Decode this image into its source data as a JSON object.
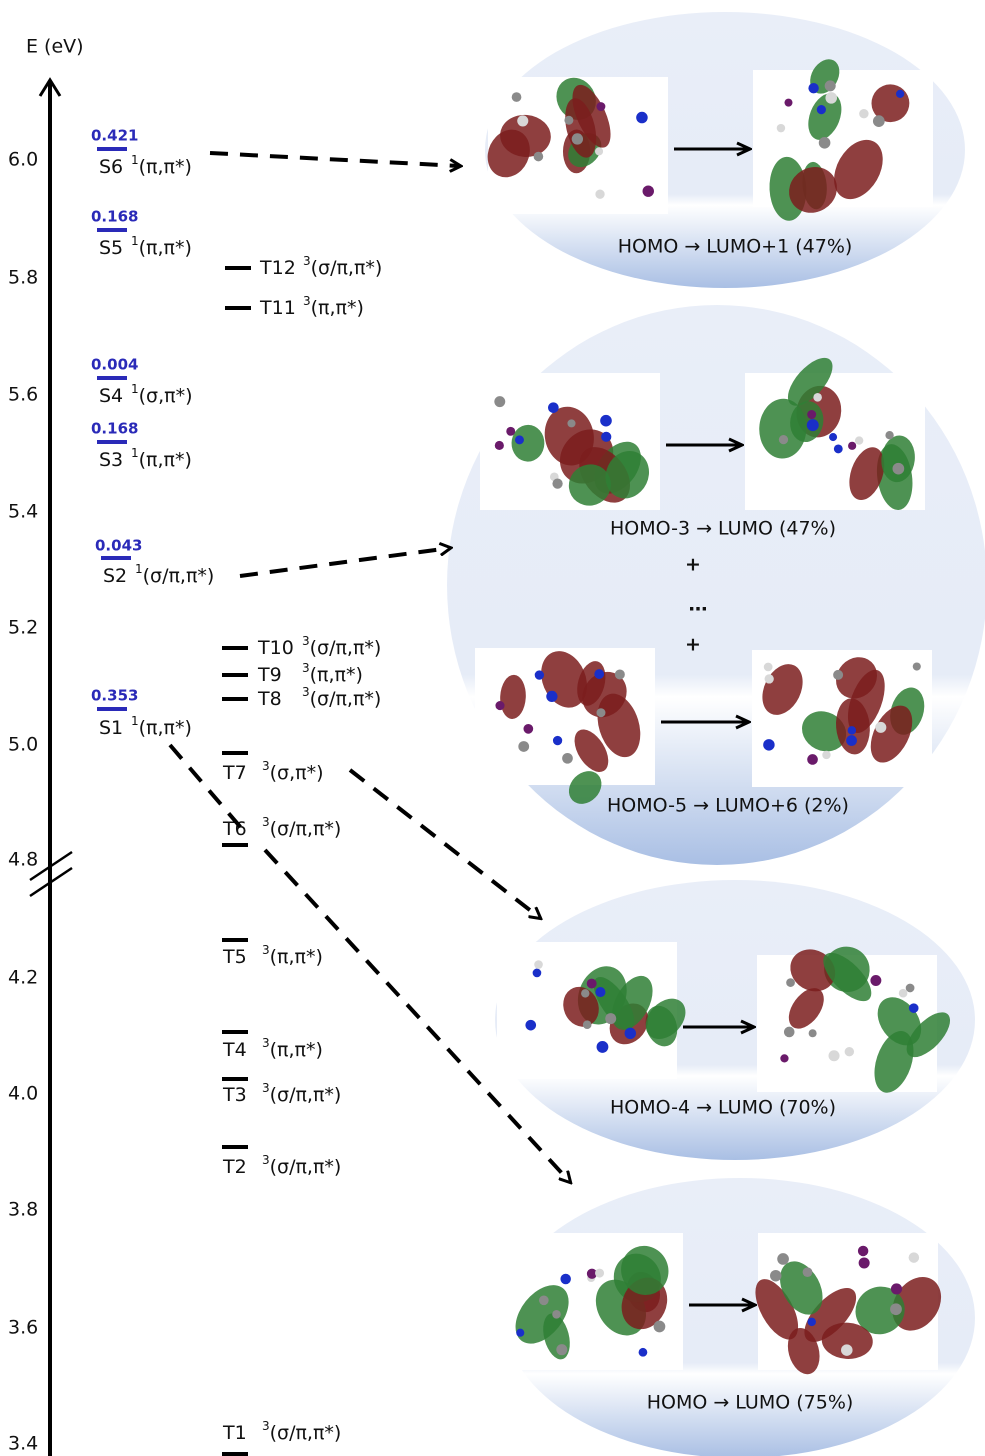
{
  "axis": {
    "label": "E (eV)",
    "ticks": [
      "6.0",
      "5.8",
      "5.6",
      "5.4",
      "5.2",
      "5.0",
      "4.8",
      "4.2",
      "4.0",
      "3.8",
      "3.6",
      "3.4"
    ]
  },
  "singlets": [
    {
      "f": "0.421",
      "name": "S6",
      "multiplicity": "1",
      "character": "(π,π*)"
    },
    {
      "f": "0.168",
      "name": "S5",
      "multiplicity": "1",
      "character": "(π,π*)"
    },
    {
      "f": "0.004",
      "name": "S4",
      "multiplicity": "1",
      "character": "(σ,π*)"
    },
    {
      "f": "0.168",
      "name": "S3",
      "multiplicity": "1",
      "character": "(π,π*)"
    },
    {
      "f": "0.043",
      "name": "S2",
      "multiplicity": "1",
      "character": "(σ/π,π*)"
    },
    {
      "f": "0.353",
      "name": "S1",
      "multiplicity": "1",
      "character": "(π,π*)"
    }
  ],
  "triplets": [
    {
      "name": "T12",
      "multiplicity": "3",
      "character": "(σ/π,π*)"
    },
    {
      "name": "T11",
      "multiplicity": "3",
      "character": "(π,π*)"
    },
    {
      "name": "T10",
      "multiplicity": "3",
      "character": "(σ/π,π*)"
    },
    {
      "name": "T9",
      "multiplicity": "3",
      "character": "(π,π*)"
    },
    {
      "name": "T8",
      "multiplicity": "3",
      "character": "(σ/π,π*)"
    },
    {
      "name": "T7",
      "multiplicity": "3",
      "character": "(σ,π*)"
    },
    {
      "name": "T6",
      "multiplicity": "3",
      "character": "(σ/π,π*)"
    },
    {
      "name": "T5",
      "multiplicity": "3",
      "character": "(π,π*)"
    },
    {
      "name": "T4",
      "multiplicity": "3",
      "character": "(π,π*)"
    },
    {
      "name": "T3",
      "multiplicity": "3",
      "character": "(σ/π,π*)"
    },
    {
      "name": "T2",
      "multiplicity": "3",
      "character": "(σ/π,π*)"
    },
    {
      "name": "T1",
      "multiplicity": "3",
      "character": "(σ/π,π*)"
    }
  ],
  "panels": [
    {
      "lines": [
        "HOMO → LUMO+1 (47%)"
      ]
    },
    {
      "lines": [
        "HOMO-3 → LUMO (47%)",
        "+",
        "…",
        "+",
        "HOMO-5 → LUMO+6 (2%)"
      ]
    },
    {
      "lines": [
        "HOMO-4 → LUMO (70%)"
      ]
    },
    {
      "lines": [
        "HOMO → LUMO (75%)"
      ]
    }
  ]
}
